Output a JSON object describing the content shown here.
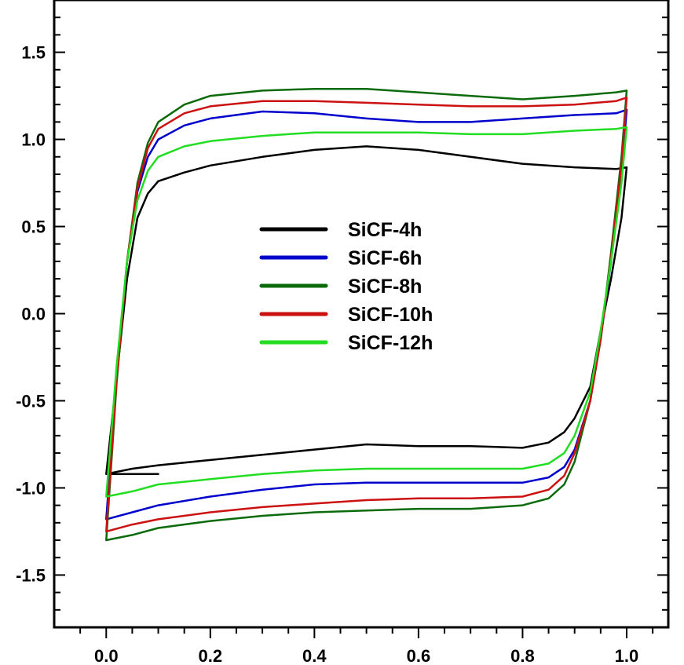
{
  "chart_data": {
    "type": "line",
    "title": "",
    "xlabel": "",
    "ylabel": "",
    "xlim": [
      -0.1,
      1.08
    ],
    "ylim": [
      -1.8,
      1.8
    ],
    "x_ticks": [
      0.0,
      0.2,
      0.4,
      0.6,
      0.8,
      1.0
    ],
    "x_tick_labels": [
      "0.0",
      "0.2",
      "0.4",
      "0.6",
      "0.8",
      "1.0"
    ],
    "y_ticks": [
      1.5,
      1.0,
      0.5,
      0.0,
      -0.5,
      -1.0,
      -1.5
    ],
    "y_tick_labels": [
      "1.5",
      "1.0",
      "0.5",
      "0.0",
      "-0.5",
      "-1.0",
      "-1.5"
    ],
    "grid": false,
    "legend_position": "center",
    "series": [
      {
        "name": "SiCF-4h",
        "color": "#000000",
        "x": [
          0.0,
          0.02,
          0.04,
          0.06,
          0.08,
          0.1,
          0.15,
          0.2,
          0.3,
          0.4,
          0.5,
          0.6,
          0.7,
          0.8,
          0.9,
          0.98,
          1.0,
          0.99,
          0.97,
          0.95,
          0.93,
          0.9,
          0.88,
          0.85,
          0.8,
          0.7,
          0.6,
          0.5,
          0.4,
          0.3,
          0.2,
          0.1,
          0.05,
          0.0,
          0.01,
          0.02,
          0.03,
          0.04,
          0.05,
          0.06,
          0.07,
          0.08,
          0.09,
          0.1,
          0.0
        ],
        "y": [
          -0.92,
          -0.37,
          0.2,
          0.55,
          0.69,
          0.76,
          0.81,
          0.85,
          0.9,
          0.94,
          0.96,
          0.94,
          0.9,
          0.86,
          0.84,
          0.83,
          0.84,
          0.55,
          0.2,
          -0.1,
          -0.42,
          -0.6,
          -0.68,
          -0.74,
          -0.77,
          -0.76,
          -0.76,
          -0.75,
          -0.78,
          -0.81,
          -0.84,
          -0.87,
          -0.89,
          -0.92,
          -0.92,
          -0.92,
          -0.92,
          -0.92,
          -0.92,
          -0.92,
          -0.92,
          -0.92,
          -0.92,
          -0.92,
          -0.92
        ]
      },
      {
        "name": "SiCF-6h",
        "color": "#0000cc",
        "x": [
          0.0,
          0.02,
          0.04,
          0.06,
          0.08,
          0.1,
          0.15,
          0.2,
          0.3,
          0.4,
          0.5,
          0.6,
          0.7,
          0.8,
          0.9,
          0.98,
          1.0,
          0.99,
          0.97,
          0.95,
          0.93,
          0.9,
          0.88,
          0.85,
          0.8,
          0.7,
          0.6,
          0.5,
          0.4,
          0.3,
          0.2,
          0.1,
          0.05,
          0.0
        ],
        "y": [
          -1.18,
          -0.35,
          0.3,
          0.7,
          0.9,
          1.0,
          1.08,
          1.12,
          1.16,
          1.15,
          1.12,
          1.1,
          1.1,
          1.12,
          1.14,
          1.15,
          1.17,
          0.8,
          0.3,
          -0.15,
          -0.5,
          -0.78,
          -0.88,
          -0.94,
          -0.97,
          -0.97,
          -0.97,
          -0.97,
          -0.98,
          -1.01,
          -1.05,
          -1.1,
          -1.14,
          -1.18
        ]
      },
      {
        "name": "SiCF-8h",
        "color": "#0b6b0b",
        "x": [
          0.0,
          0.02,
          0.04,
          0.06,
          0.08,
          0.1,
          0.15,
          0.2,
          0.3,
          0.4,
          0.5,
          0.6,
          0.7,
          0.8,
          0.9,
          0.98,
          1.0,
          0.99,
          0.97,
          0.95,
          0.93,
          0.9,
          0.88,
          0.85,
          0.8,
          0.7,
          0.6,
          0.5,
          0.4,
          0.3,
          0.2,
          0.1,
          0.05,
          0.0
        ],
        "y": [
          -1.3,
          -0.4,
          0.3,
          0.75,
          0.98,
          1.1,
          1.2,
          1.25,
          1.28,
          1.29,
          1.29,
          1.27,
          1.25,
          1.23,
          1.25,
          1.27,
          1.28,
          0.9,
          0.35,
          -0.15,
          -0.5,
          -0.85,
          -0.98,
          -1.06,
          -1.1,
          -1.12,
          -1.12,
          -1.13,
          -1.14,
          -1.16,
          -1.19,
          -1.23,
          -1.27,
          -1.3
        ]
      },
      {
        "name": "SiCF-10h",
        "color": "#cc1111",
        "x": [
          0.0,
          0.02,
          0.04,
          0.06,
          0.08,
          0.1,
          0.15,
          0.2,
          0.3,
          0.4,
          0.5,
          0.6,
          0.7,
          0.8,
          0.9,
          0.98,
          1.0,
          0.99,
          0.97,
          0.95,
          0.93,
          0.9,
          0.88,
          0.85,
          0.8,
          0.7,
          0.6,
          0.5,
          0.4,
          0.3,
          0.2,
          0.1,
          0.05,
          0.0
        ],
        "y": [
          -1.25,
          -0.38,
          0.3,
          0.72,
          0.95,
          1.06,
          1.15,
          1.19,
          1.22,
          1.22,
          1.21,
          1.2,
          1.19,
          1.19,
          1.2,
          1.22,
          1.24,
          0.85,
          0.32,
          -0.15,
          -0.5,
          -0.8,
          -0.93,
          -1.01,
          -1.05,
          -1.06,
          -1.06,
          -1.07,
          -1.09,
          -1.11,
          -1.14,
          -1.18,
          -1.21,
          -1.25
        ]
      },
      {
        "name": "SiCF-12h",
        "color": "#22dd22",
        "x": [
          0.0,
          0.02,
          0.04,
          0.06,
          0.08,
          0.1,
          0.15,
          0.2,
          0.3,
          0.4,
          0.5,
          0.6,
          0.7,
          0.8,
          0.9,
          0.98,
          1.0,
          0.99,
          0.97,
          0.95,
          0.93,
          0.9,
          0.88,
          0.85,
          0.8,
          0.7,
          0.6,
          0.5,
          0.4,
          0.3,
          0.2,
          0.1,
          0.05,
          0.0
        ],
        "y": [
          -1.05,
          -0.3,
          0.3,
          0.65,
          0.82,
          0.9,
          0.96,
          0.99,
          1.02,
          1.04,
          1.04,
          1.04,
          1.03,
          1.03,
          1.05,
          1.06,
          1.07,
          0.75,
          0.3,
          -0.1,
          -0.45,
          -0.7,
          -0.8,
          -0.86,
          -0.89,
          -0.89,
          -0.89,
          -0.89,
          -0.9,
          -0.92,
          -0.95,
          -0.98,
          -1.02,
          -1.05
        ]
      }
    ]
  }
}
